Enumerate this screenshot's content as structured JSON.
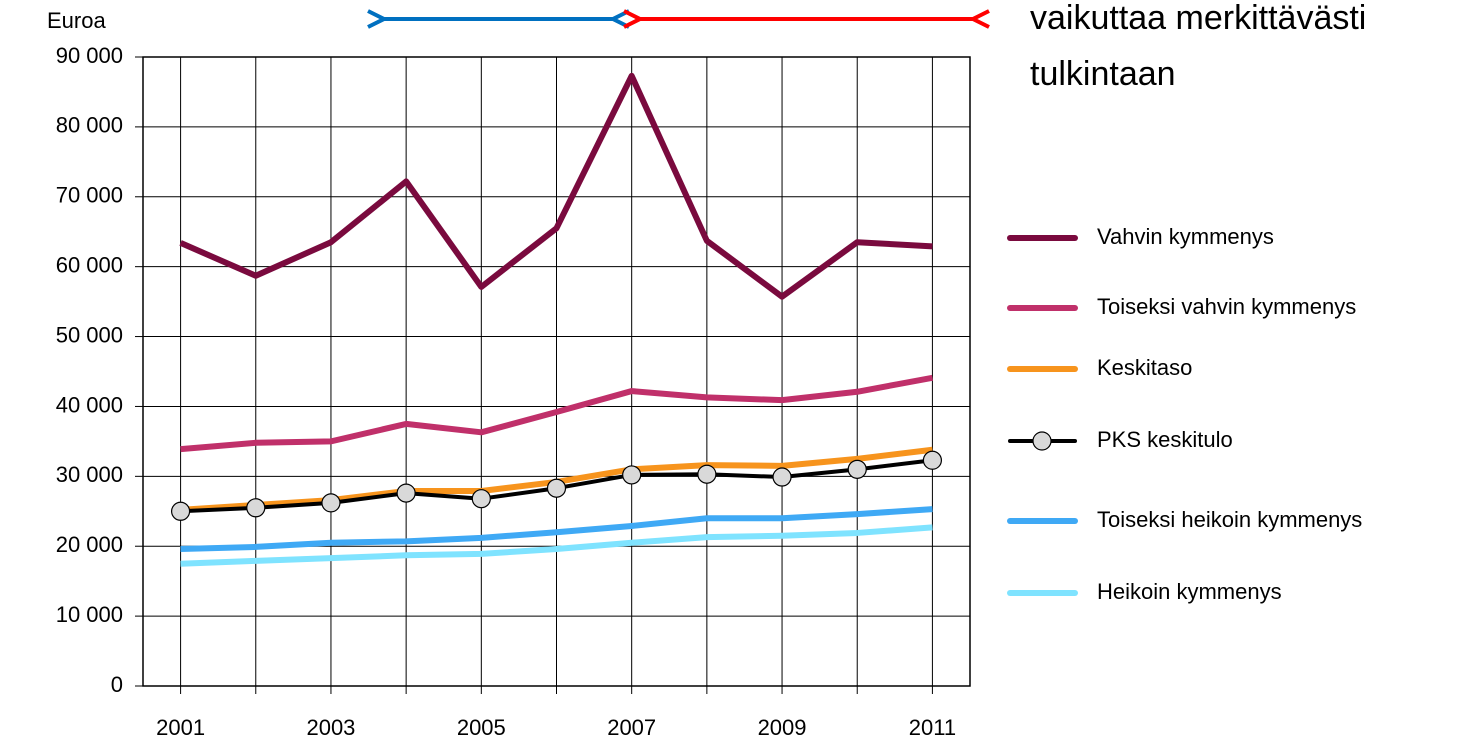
{
  "chart_data": {
    "type": "line",
    "y_label": "Euroa",
    "annotations": [
      "vaikuttaa merkittävästi",
      "tulkintaan"
    ],
    "categories": [
      "2001",
      null,
      "2003",
      null,
      "2005",
      null,
      "2007",
      null,
      "2009",
      null,
      "2011"
    ],
    "ylim": [
      0,
      90000
    ],
    "yticks": [
      0,
      {
        "value": 10000,
        "label": "10 000"
      },
      {
        "value": 20000,
        "label": "20 000"
      },
      {
        "value": 30000,
        "label": "30 000"
      },
      {
        "value": 40000,
        "label": "40 000"
      },
      {
        "value": 50000,
        "label": "50 000"
      },
      {
        "value": 60000,
        "label": "60 000"
      },
      {
        "value": 70000,
        "label": "70 000"
      },
      {
        "value": 80000,
        "label": "80 000"
      },
      {
        "value": 90000,
        "label": "90 000"
      }
    ],
    "grid": true,
    "legend": "right",
    "series": [
      {
        "name": "Vahvin kymmenys",
        "color": "#7a0a3e",
        "values": [
          63400,
          58700,
          63500,
          72200,
          57100,
          65500,
          87300,
          63700,
          55700,
          63500,
          62900
        ]
      },
      {
        "name": "Toiseksi vahvin kymmenys",
        "color": "#c0306a",
        "values": [
          33900,
          34800,
          35000,
          37500,
          36300,
          39200,
          42200,
          41300,
          40900,
          42100,
          44100
        ]
      },
      {
        "name": "Keskitaso",
        "color": "#f7941d",
        "values": [
          25200,
          25900,
          26600,
          27900,
          27900,
          29200,
          31000,
          31600,
          31500,
          32500,
          33800
        ]
      },
      {
        "name": "PKS keskitulo",
        "color": "#000000",
        "marker_color": "#d9d9d9",
        "values": [
          25000,
          25500,
          26200,
          27600,
          26800,
          28300,
          30200,
          30300,
          29900,
          31000,
          32300
        ]
      },
      {
        "name": "Toiseksi heikoin kymmenys",
        "color": "#3fa9f5",
        "values": [
          19600,
          19900,
          20500,
          20700,
          21200,
          22000,
          22900,
          24000,
          24000,
          24600,
          25300
        ]
      },
      {
        "name": "Heikoin kymmenys",
        "color": "#7fe3ff",
        "values": [
          17500,
          17900,
          18300,
          18700,
          18900,
          19600,
          20500,
          21300,
          21500,
          21900,
          22700
        ]
      }
    ]
  }
}
